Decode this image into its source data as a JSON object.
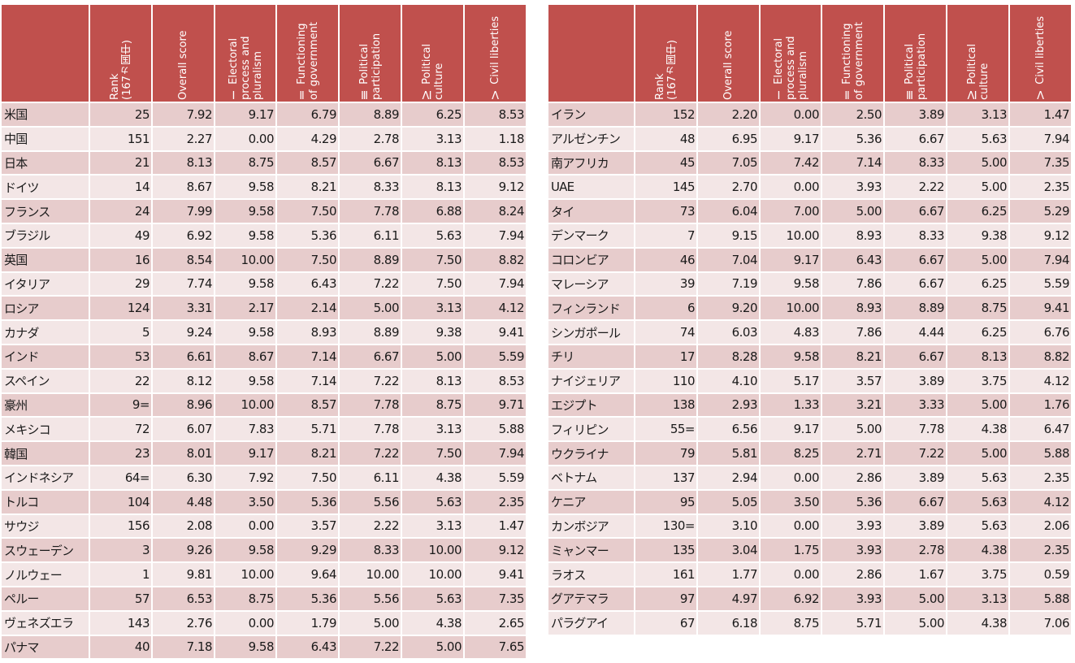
{
  "headers": [
    "",
    "Rank\n(167ヵ国中)",
    "Overall score",
    "Ⅰ Electoral\nprocess and\npluralism",
    "Ⅱ Functioning\nof government",
    "Ⅲ Political\nparticipation",
    "Ⅳ Political\nculture",
    "Ⅴ Civil liberties"
  ],
  "colors": {
    "header_bg": "#c0504d",
    "header_text": "#ffffff",
    "row_odd": "#e7cccc",
    "row_even": "#f3e6e6"
  },
  "left_rows": [
    [
      "米国",
      "25",
      "7.92",
      "9.17",
      "6.79",
      "8.89",
      "6.25",
      "8.53"
    ],
    [
      "中国",
      "151",
      "2.27",
      "0.00",
      "4.29",
      "2.78",
      "3.13",
      "1.18"
    ],
    [
      "日本",
      "21",
      "8.13",
      "8.75",
      "8.57",
      "6.67",
      "8.13",
      "8.53"
    ],
    [
      "ドイツ",
      "14",
      "8.67",
      "9.58",
      "8.21",
      "8.33",
      "8.13",
      "9.12"
    ],
    [
      "フランス",
      "24",
      "7.99",
      "9.58",
      "7.50",
      "7.78",
      "6.88",
      "8.24"
    ],
    [
      "ブラジル",
      "49",
      "6.92",
      "9.58",
      "5.36",
      "6.11",
      "5.63",
      "7.94"
    ],
    [
      "英国",
      "16",
      "8.54",
      "10.00",
      "7.50",
      "8.89",
      "7.50",
      "8.82"
    ],
    [
      "イタリア",
      "29",
      "7.74",
      "9.58",
      "6.43",
      "7.22",
      "7.50",
      "7.94"
    ],
    [
      "ロシア",
      "124",
      "3.31",
      "2.17",
      "2.14",
      "5.00",
      "3.13",
      "4.12"
    ],
    [
      "カナダ",
      "5",
      "9.24",
      "9.58",
      "8.93",
      "8.89",
      "9.38",
      "9.41"
    ],
    [
      "インド",
      "53",
      "6.61",
      "8.67",
      "7.14",
      "6.67",
      "5.00",
      "5.59"
    ],
    [
      "スペイン",
      "22",
      "8.12",
      "9.58",
      "7.14",
      "7.22",
      "8.13",
      "8.53"
    ],
    [
      "豪州",
      "9=",
      "8.96",
      "10.00",
      "8.57",
      "7.78",
      "8.75",
      "9.71"
    ],
    [
      "メキシコ",
      "72",
      "6.07",
      "7.83",
      "5.71",
      "7.78",
      "3.13",
      "5.88"
    ],
    [
      "韓国",
      "23",
      "8.01",
      "9.17",
      "8.21",
      "7.22",
      "7.50",
      "7.94"
    ],
    [
      "インドネシア",
      "64=",
      "6.30",
      "7.92",
      "7.50",
      "6.11",
      "4.38",
      "5.59"
    ],
    [
      "トルコ",
      "104",
      "4.48",
      "3.50",
      "5.36",
      "5.56",
      "5.63",
      "2.35"
    ],
    [
      "サウジ",
      "156",
      "2.08",
      "0.00",
      "3.57",
      "2.22",
      "3.13",
      "1.47"
    ],
    [
      "スウェーデン",
      "3",
      "9.26",
      "9.58",
      "9.29",
      "8.33",
      "10.00",
      "9.12"
    ],
    [
      "ノルウェー",
      "1",
      "9.81",
      "10.00",
      "9.64",
      "10.00",
      "10.00",
      "9.41"
    ],
    [
      "ペルー",
      "57",
      "6.53",
      "8.75",
      "5.36",
      "5.56",
      "5.63",
      "7.35"
    ],
    [
      "ヴェネズエラ",
      "143",
      "2.76",
      "0.00",
      "1.79",
      "5.00",
      "4.38",
      "2.65"
    ],
    [
      "パナマ",
      "40",
      "7.18",
      "9.58",
      "6.43",
      "7.22",
      "5.00",
      "7.65"
    ]
  ],
  "right_rows": [
    [
      "イラン",
      "152",
      "2.20",
      "0.00",
      "2.50",
      "3.89",
      "3.13",
      "1.47"
    ],
    [
      "アルゼンチン",
      "48",
      "6.95",
      "9.17",
      "5.36",
      "6.67",
      "5.63",
      "7.94"
    ],
    [
      "南アフリカ",
      "45",
      "7.05",
      "7.42",
      "7.14",
      "8.33",
      "5.00",
      "7.35"
    ],
    [
      "UAE",
      "145",
      "2.70",
      "0.00",
      "3.93",
      "2.22",
      "5.00",
      "2.35"
    ],
    [
      "タイ",
      "73",
      "6.04",
      "7.00",
      "5.00",
      "6.67",
      "6.25",
      "5.29"
    ],
    [
      "デンマーク",
      "7",
      "9.15",
      "10.00",
      "8.93",
      "8.33",
      "9.38",
      "9.12"
    ],
    [
      "コロンビア",
      "46",
      "7.04",
      "9.17",
      "6.43",
      "6.67",
      "5.00",
      "7.94"
    ],
    [
      "マレーシア",
      "39",
      "7.19",
      "9.58",
      "7.86",
      "6.67",
      "6.25",
      "5.59"
    ],
    [
      "フィンランド",
      "6",
      "9.20",
      "10.00",
      "8.93",
      "8.89",
      "8.75",
      "9.41"
    ],
    [
      "シンガポール",
      "74",
      "6.03",
      "4.83",
      "7.86",
      "4.44",
      "6.25",
      "6.76"
    ],
    [
      "チリ",
      "17",
      "8.28",
      "9.58",
      "8.21",
      "6.67",
      "8.13",
      "8.82"
    ],
    [
      "ナイジェリア",
      "110",
      "4.10",
      "5.17",
      "3.57",
      "3.89",
      "3.75",
      "4.12"
    ],
    [
      "エジプト",
      "138",
      "2.93",
      "1.33",
      "3.21",
      "3.33",
      "5.00",
      "1.76"
    ],
    [
      "フィリピン",
      "55=",
      "6.56",
      "9.17",
      "5.00",
      "7.78",
      "4.38",
      "6.47"
    ],
    [
      "ウクライナ",
      "79",
      "5.81",
      "8.25",
      "2.71",
      "7.22",
      "5.00",
      "5.88"
    ],
    [
      "ベトナム",
      "137",
      "2.94",
      "0.00",
      "2.86",
      "3.89",
      "5.63",
      "2.35"
    ],
    [
      "ケニア",
      "95",
      "5.05",
      "3.50",
      "5.36",
      "6.67",
      "5.63",
      "4.12"
    ],
    [
      "カンボジア",
      "130=",
      "3.10",
      "0.00",
      "3.93",
      "3.89",
      "5.63",
      "2.06"
    ],
    [
      "ミャンマー",
      "135",
      "3.04",
      "1.75",
      "3.93",
      "2.78",
      "4.38",
      "2.35"
    ],
    [
      "ラオス",
      "161",
      "1.77",
      "0.00",
      "2.86",
      "1.67",
      "3.75",
      "0.59"
    ],
    [
      "グアテマラ",
      "97",
      "4.97",
      "6.92",
      "3.93",
      "5.00",
      "3.13",
      "5.88"
    ],
    [
      "パラグアイ",
      "67",
      "6.18",
      "8.75",
      "5.71",
      "5.00",
      "4.38",
      "7.06"
    ]
  ]
}
